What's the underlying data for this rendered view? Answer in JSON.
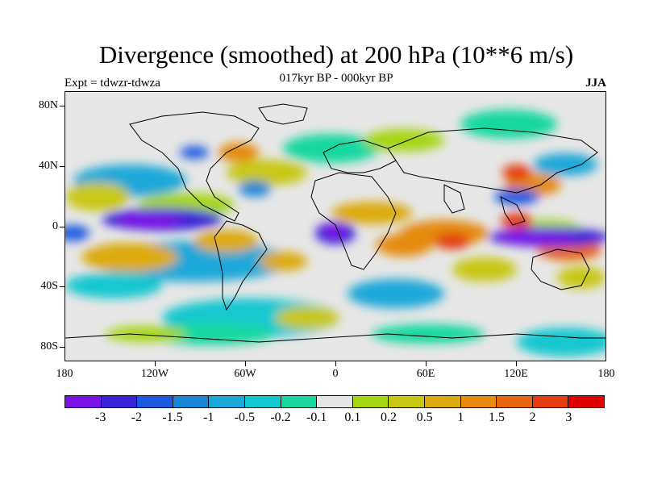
{
  "title": "Divergence (smoothed) at 200 hPa (10**6 m/s)",
  "subtitle": "017kyr BP - 000kyr BP",
  "left_label": "Expt = tdwzr-tdwza",
  "right_label": "JJA",
  "lat_labels": [
    "80N",
    "40N",
    "0",
    "40S",
    "80S"
  ],
  "lon_labels": [
    "180",
    "120W",
    "60W",
    "0",
    "60E",
    "120E",
    "180"
  ],
  "colorbar": {
    "colors": [
      "#7b12e8",
      "#3a22d8",
      "#1a5ae0",
      "#1a86d8",
      "#1aa8d8",
      "#12c8d0",
      "#18d8a0",
      "#e6e6e6",
      "#a6d612",
      "#c8c812",
      "#dcaa10",
      "#e68a10",
      "#e86410",
      "#e43c10",
      "#e00000"
    ],
    "labels": [
      "-3",
      "-2",
      "-1.5",
      "-1",
      "-0.5",
      "-0.2",
      "-0.1",
      "0.1",
      "0.2",
      "0.5",
      "1",
      "1.5",
      "2",
      "3"
    ]
  }
}
